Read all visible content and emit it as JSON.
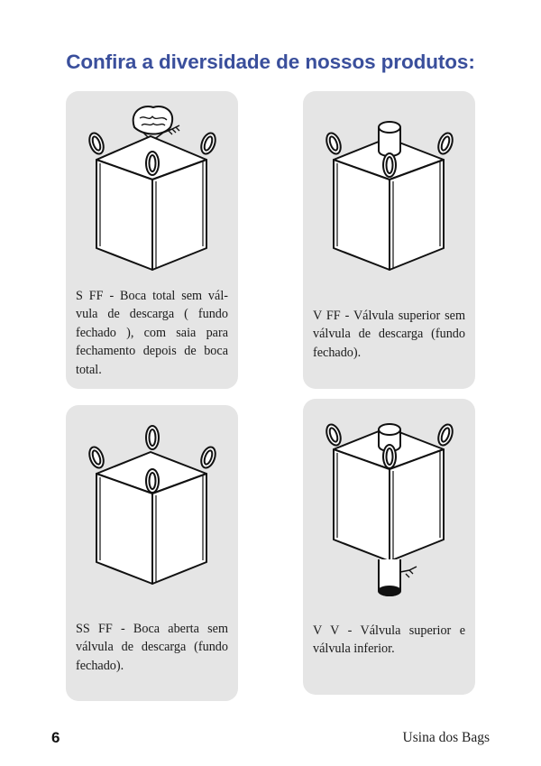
{
  "page": {
    "title": "Confira a diversidade de nossos produtos:",
    "page_number": "6",
    "brand": "Usina dos Bags"
  },
  "products": [
    {
      "icon": "bag-open-top-skirt-icon",
      "description": "S FF - Boca total sem vál-vula de descarga ( fundo fechado ), com saia para fechamento depois de boca total."
    },
    {
      "icon": "bag-top-valve-icon",
      "description": "V FF - Válvula superior sem válvula de descarga (fundo fechado)."
    },
    {
      "icon": "bag-open-top-icon",
      "description": "SS FF - Boca aberta sem válvula de descarga (fundo fechado)."
    },
    {
      "icon": "bag-top-bottom-valve-icon",
      "description": "V V - Válvula superior e válvula inferior."
    }
  ]
}
